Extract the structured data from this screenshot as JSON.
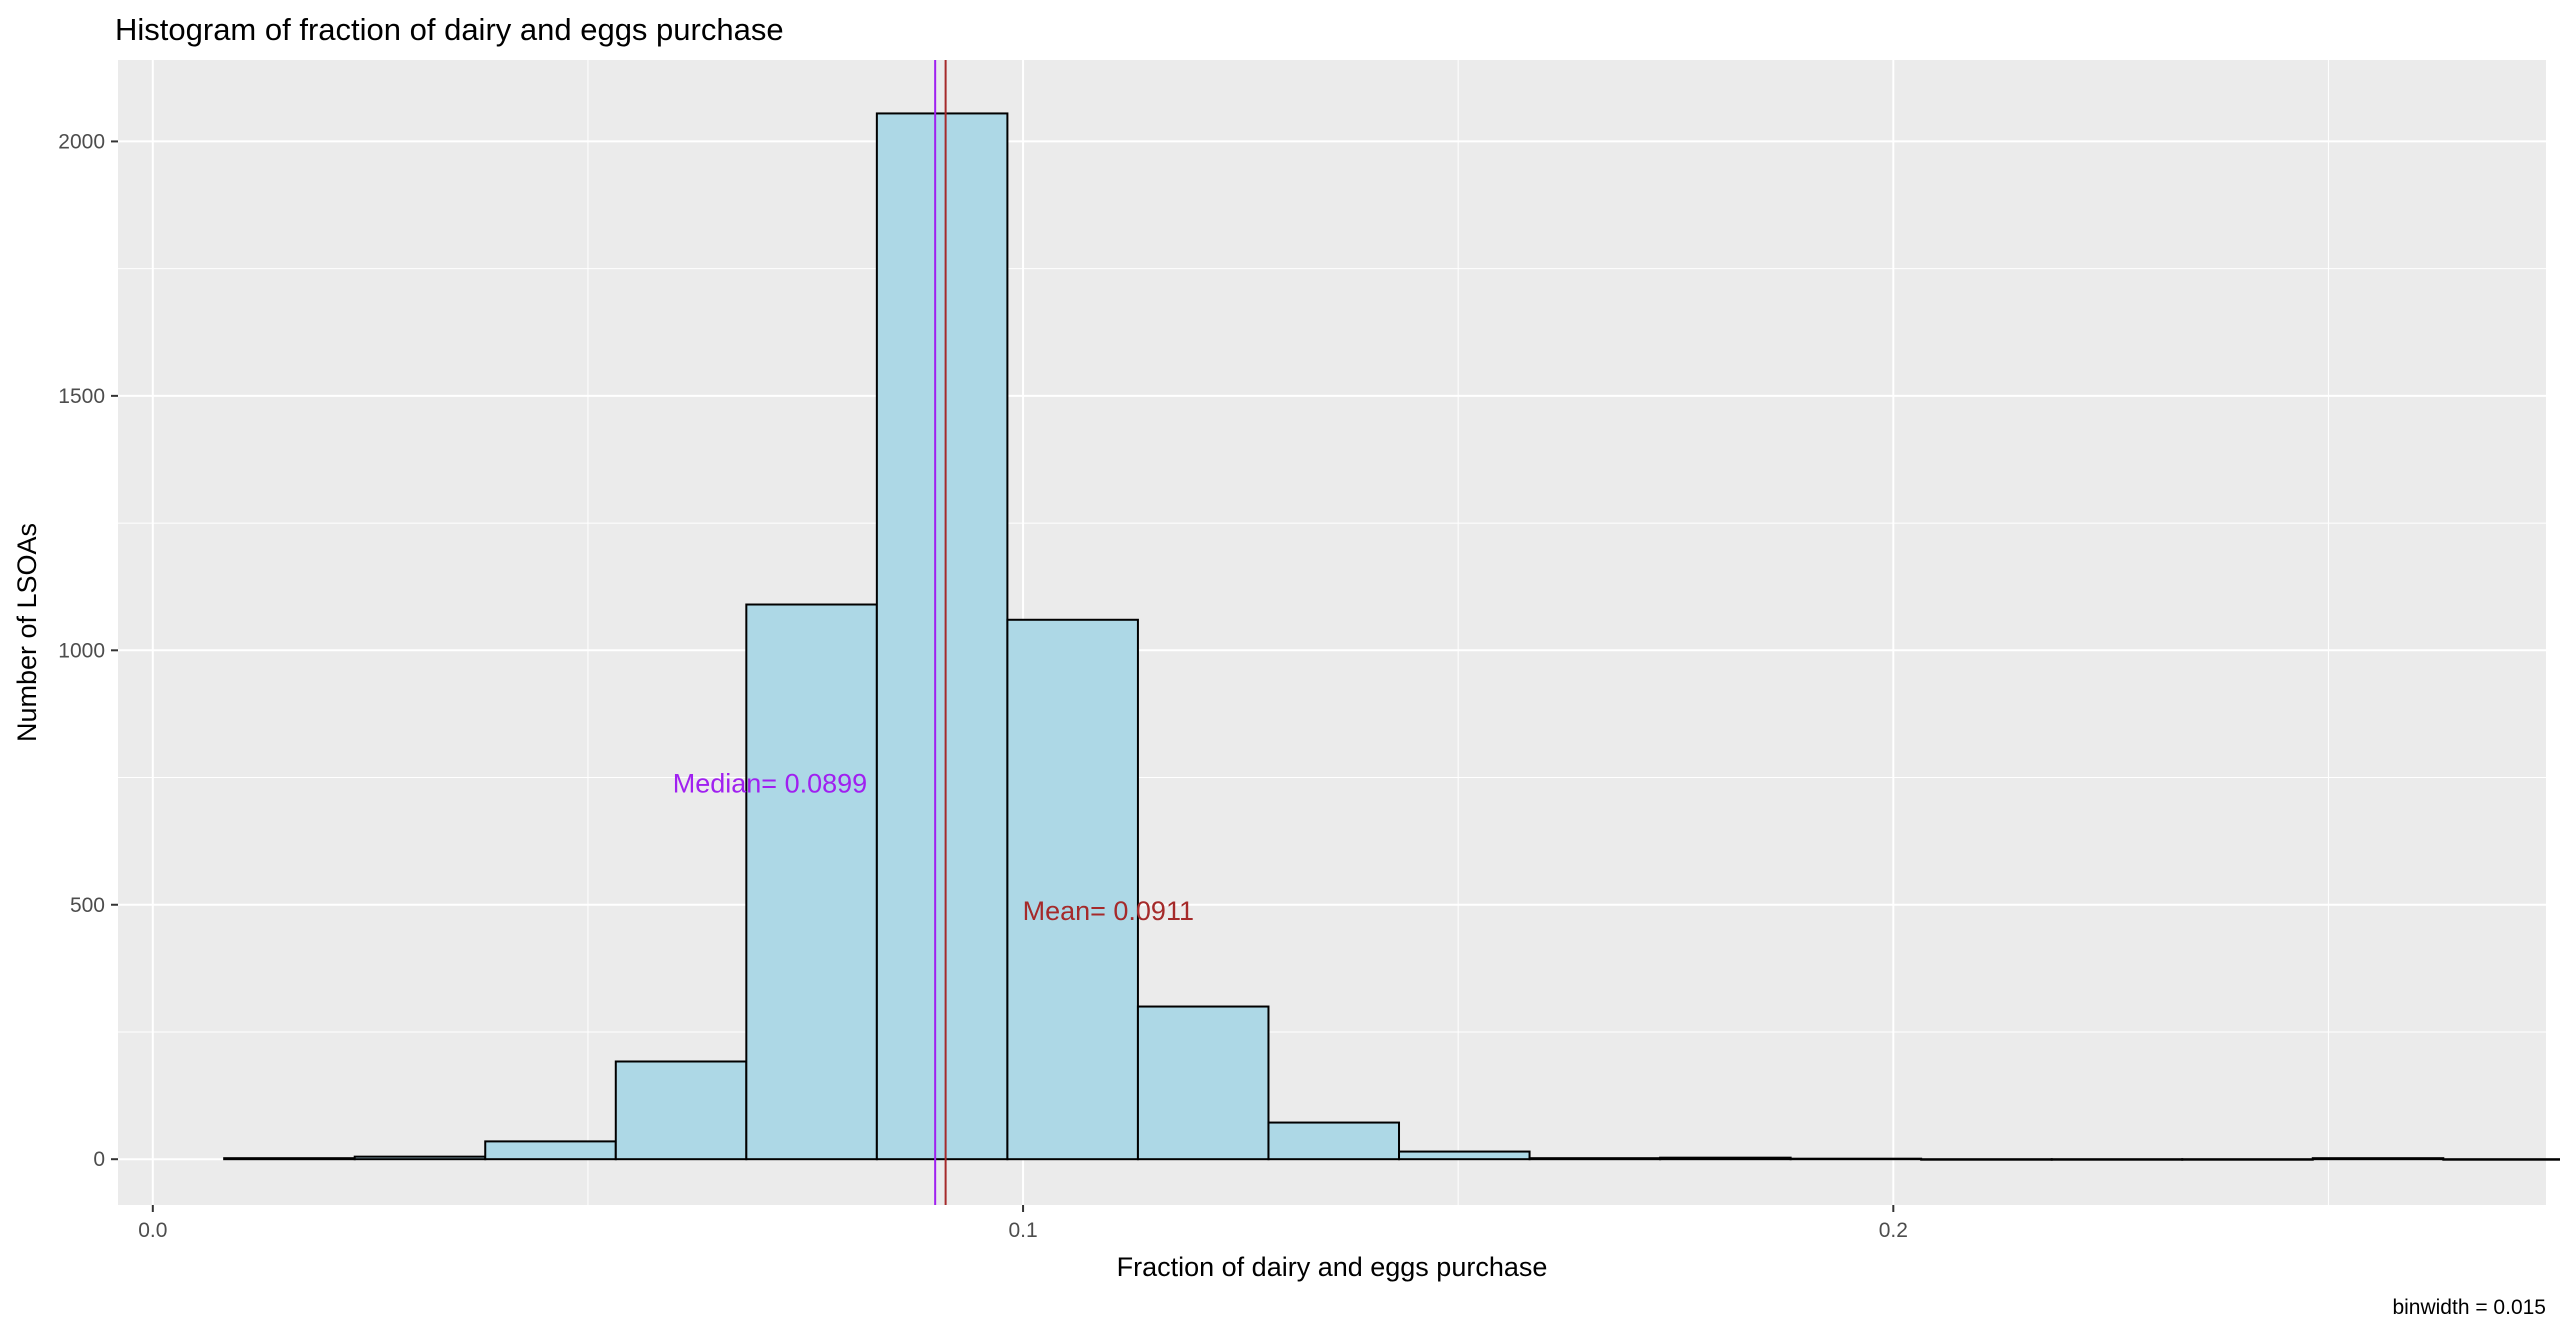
{
  "chart_data": {
    "type": "bar",
    "title": "Histogram of fraction of dairy and eggs purchase",
    "xlabel": "Fraction of dairy and eggs purchase",
    "ylabel": "Number of LSOAs",
    "caption": "binwidth = 0.015",
    "xlim": [
      -0.004,
      0.275
    ],
    "ylim": [
      -90,
      2160
    ],
    "x_ticks": [
      {
        "value": 0.0,
        "label": "0.0"
      },
      {
        "value": 0.1,
        "label": "0.1"
      },
      {
        "value": 0.2,
        "label": "0.2"
      }
    ],
    "y_ticks": [
      {
        "value": 0,
        "label": "0"
      },
      {
        "value": 500,
        "label": "500"
      },
      {
        "value": 1000,
        "label": "1000"
      },
      {
        "value": 1500,
        "label": "1500"
      },
      {
        "value": 2000,
        "label": "2000"
      }
    ],
    "binwidth": 0.015,
    "bins": [
      {
        "start": 0.0082,
        "count": 2
      },
      {
        "start": 0.0232,
        "count": 5
      },
      {
        "start": 0.0382,
        "count": 35
      },
      {
        "start": 0.0532,
        "count": 192
      },
      {
        "start": 0.0682,
        "count": 1090
      },
      {
        "start": 0.0832,
        "count": 2055
      },
      {
        "start": 0.0982,
        "count": 1060
      },
      {
        "start": 0.1132,
        "count": 300
      },
      {
        "start": 0.1282,
        "count": 72
      },
      {
        "start": 0.1432,
        "count": 15
      },
      {
        "start": 0.1582,
        "count": 2
      },
      {
        "start": 0.1732,
        "count": 3
      },
      {
        "start": 0.1882,
        "count": 1
      },
      {
        "start": 0.2032,
        "count": 0
      },
      {
        "start": 0.2182,
        "count": 0
      },
      {
        "start": 0.2332,
        "count": 0
      },
      {
        "start": 0.2482,
        "count": 2
      },
      {
        "start": 0.2632,
        "count": 0
      }
    ],
    "bin_fill": "#add8e6",
    "bin_outline": "#000000",
    "panel_background": "#ebebeb",
    "grid": true,
    "reference_lines": [
      {
        "name": "median",
        "label": "Median=  0.0899",
        "x": 0.0899,
        "label_y": 740,
        "label_anchor": "end",
        "color": "#a020f0"
      },
      {
        "name": "mean",
        "label": "Mean=  0.0911",
        "x": 0.0911,
        "label_y": 490,
        "label_anchor": "start",
        "color": "#a52a2a"
      }
    ]
  }
}
